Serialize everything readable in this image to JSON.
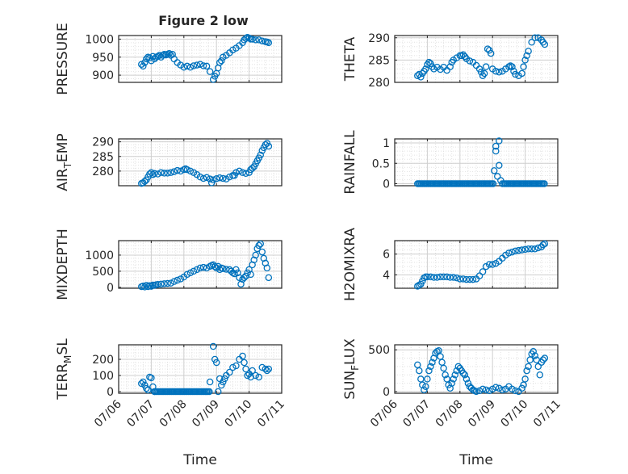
{
  "figure": {
    "title": "Figure 2 low"
  },
  "colors": {
    "marker": "#0072BD",
    "axis": "#262626",
    "grid": "#d8d8d8",
    "background": "#ffffff"
  },
  "chart_data": [
    {
      "type": "scatter",
      "title": "Figure 2 low",
      "xlabel": "",
      "ylabel": "PRESSURE",
      "xlim": [
        "07/06",
        "07/11"
      ],
      "ylim": [
        880,
        1010
      ],
      "yticks": [
        900,
        950,
        1000
      ],
      "xtick_labels": [
        "07/06",
        "07/07",
        "07/08",
        "07/09",
        "07/10",
        "07/11"
      ],
      "grid": true,
      "series": [
        {
          "x_days": [
            0.7,
            0.75,
            0.8,
            0.85,
            0.9,
            0.95,
            1.0,
            1.05,
            1.1,
            1.15,
            1.2,
            1.25,
            1.3,
            1.35,
            1.4,
            1.45,
            1.5,
            1.55,
            1.6,
            1.65,
            1.7,
            1.8,
            1.9,
            2.0,
            2.1,
            2.2,
            2.3,
            2.4,
            2.5,
            2.6,
            2.7,
            2.8,
            2.9,
            2.95,
            3.0,
            3.05,
            3.1,
            3.15,
            3.2,
            3.3,
            3.4,
            3.5,
            3.6,
            3.7,
            3.8,
            3.85,
            3.9,
            3.95,
            4.0,
            4.05,
            4.1,
            4.2,
            4.3,
            4.4,
            4.5,
            4.55,
            4.6
          ],
          "y": [
            930,
            925,
            935,
            945,
            950,
            948,
            940,
            952,
            945,
            950,
            952,
            955,
            950,
            955,
            958,
            956,
            958,
            960,
            955,
            958,
            945,
            935,
            928,
            922,
            925,
            922,
            926,
            928,
            930,
            926,
            925,
            910,
            888,
            897,
            905,
            920,
            935,
            940,
            950,
            955,
            962,
            970,
            975,
            982,
            990,
            998,
            1002,
            1005,
            1003,
            1000,
            1000,
            998,
            998,
            995,
            993,
            992,
            990
          ]
        }
      ]
    },
    {
      "type": "scatter",
      "xlabel": "",
      "ylabel": "THETA",
      "xlim": [
        "07/06",
        "07/11"
      ],
      "ylim": [
        280,
        290.5
      ],
      "yticks": [
        280,
        285,
        290
      ],
      "xtick_labels": [
        "07/06",
        "07/07",
        "07/08",
        "07/09",
        "07/10",
        "07/11"
      ],
      "grid": true,
      "series": [
        {
          "x_days": [
            0.7,
            0.75,
            0.8,
            0.85,
            0.9,
            0.95,
            1.0,
            1.05,
            1.1,
            1.15,
            1.2,
            1.3,
            1.4,
            1.5,
            1.6,
            1.7,
            1.75,
            1.8,
            1.9,
            2.0,
            2.05,
            2.1,
            2.15,
            2.2,
            2.3,
            2.4,
            2.5,
            2.6,
            2.65,
            2.7,
            2.75,
            2.8,
            2.85,
            2.9,
            2.95,
            3.0,
            3.1,
            3.2,
            3.3,
            3.4,
            3.5,
            3.55,
            3.6,
            3.65,
            3.7,
            3.8,
            3.9,
            3.95,
            4.0,
            4.05,
            4.1,
            4.2,
            4.3,
            4.4,
            4.5,
            4.55,
            4.6
          ],
          "y": [
            281.5,
            281.8,
            281.2,
            282,
            282.5,
            283,
            284,
            284.5,
            284.2,
            283.5,
            283,
            283.4,
            282.9,
            283.4,
            282.7,
            283.5,
            284.5,
            285,
            285.5,
            286,
            286,
            286.2,
            285.8,
            285.3,
            284.8,
            284.5,
            283.8,
            283,
            282.3,
            281.5,
            282,
            283.5,
            287.5,
            287.2,
            286.5,
            283,
            282.5,
            282.3,
            282.5,
            283,
            283.5,
            283.7,
            283.5,
            282.5,
            281.8,
            281.5,
            282,
            283.5,
            285,
            286,
            287,
            289,
            290,
            290,
            289.5,
            289,
            288.5
          ]
        }
      ]
    },
    {
      "type": "scatter",
      "xlabel": "",
      "ylabel": "AIR_TEMP",
      "xlim": [
        "07/06",
        "07/11"
      ],
      "ylim": [
        275,
        291
      ],
      "yticks": [
        280,
        285,
        290
      ],
      "xtick_labels": [
        "07/06",
        "07/07",
        "07/08",
        "07/09",
        "07/10",
        "07/11"
      ],
      "grid": true,
      "series": [
        {
          "x_days": [
            0.7,
            0.75,
            0.8,
            0.85,
            0.9,
            0.95,
            1.0,
            1.05,
            1.1,
            1.2,
            1.3,
            1.4,
            1.5,
            1.6,
            1.7,
            1.8,
            1.9,
            2.0,
            2.05,
            2.1,
            2.2,
            2.3,
            2.4,
            2.5,
            2.6,
            2.7,
            2.8,
            2.85,
            2.9,
            3.0,
            3.1,
            3.2,
            3.3,
            3.4,
            3.5,
            3.55,
            3.6,
            3.7,
            3.8,
            3.9,
            4.0,
            4.05,
            4.1,
            4.15,
            4.2,
            4.25,
            4.3,
            4.35,
            4.4,
            4.45,
            4.5,
            4.55,
            4.6
          ],
          "y": [
            275.8,
            276,
            276.5,
            277,
            278,
            279,
            279.5,
            278.8,
            279.2,
            279,
            279.5,
            279.3,
            279.3,
            279.5,
            279.8,
            280.2,
            280,
            280.5,
            280.8,
            280.5,
            280,
            279.5,
            278.8,
            278,
            277.5,
            277.8,
            277.3,
            276,
            277,
            277.4,
            277.7,
            277.5,
            277.3,
            278,
            278.5,
            278.5,
            279.5,
            280,
            279.5,
            279.2,
            279.5,
            280.5,
            281,
            281.5,
            282.5,
            283.5,
            284.5,
            285.5,
            287,
            288,
            289,
            289.5,
            288.5
          ]
        }
      ]
    },
    {
      "type": "scatter",
      "xlabel": "",
      "ylabel": "RAINFALL",
      "xlim": [
        "07/06",
        "07/11"
      ],
      "ylim": [
        -0.05,
        1.1
      ],
      "yticks": [
        0,
        0.5,
        1
      ],
      "ytick_labels": [
        "0",
        "0.5",
        "1"
      ],
      "xtick_labels": [
        "07/06",
        "07/07",
        "07/08",
        "07/09",
        "07/10",
        "07/11"
      ],
      "grid": true,
      "series": [
        {
          "note_zero_run": [
            0.7,
            3.05,
            3.35,
            4.6
          ],
          "x_days": [
            3.05,
            3.1,
            3.1,
            3.15,
            3.2,
            3.2,
            3.25,
            3.3
          ],
          "y": [
            0.32,
            0.92,
            0.8,
            0.18,
            0.45,
            1.05,
            0.08,
            0.0
          ]
        }
      ]
    },
    {
      "type": "scatter",
      "xlabel": "",
      "ylabel": "MIXDEPTH",
      "xlim": [
        "07/06",
        "07/11"
      ],
      "ylim": [
        -30,
        1450
      ],
      "yticks": [
        0,
        500,
        1000
      ],
      "xtick_labels": [
        "07/06",
        "07/07",
        "07/08",
        "07/09",
        "07/10",
        "07/11"
      ],
      "grid": true,
      "series": [
        {
          "x_days": [
            0.7,
            0.75,
            0.8,
            0.85,
            0.9,
            0.95,
            1.0,
            1.05,
            1.1,
            1.15,
            1.2,
            1.3,
            1.4,
            1.5,
            1.6,
            1.7,
            1.8,
            1.9,
            2.0,
            2.1,
            2.2,
            2.3,
            2.4,
            2.5,
            2.6,
            2.7,
            2.8,
            2.85,
            2.9,
            2.95,
            3.0,
            3.05,
            3.1,
            3.15,
            3.2,
            3.3,
            3.4,
            3.45,
            3.5,
            3.55,
            3.6,
            3.65,
            3.7,
            3.75,
            3.8,
            3.85,
            3.9,
            3.95,
            4.0,
            4.05,
            4.1,
            4.15,
            4.2,
            4.25,
            4.3,
            4.35,
            4.4,
            4.45,
            4.5,
            4.55,
            4.6
          ],
          "y": [
            20,
            40,
            10,
            60,
            20,
            50,
            30,
            70,
            60,
            80,
            90,
            100,
            110,
            120,
            130,
            180,
            220,
            260,
            320,
            400,
            450,
            500,
            550,
            600,
            620,
            600,
            650,
            680,
            700,
            640,
            600,
            650,
            550,
            600,
            580,
            560,
            550,
            500,
            450,
            420,
            550,
            450,
            300,
            100,
            250,
            300,
            350,
            450,
            550,
            400,
            700,
            850,
            1000,
            1200,
            1300,
            1350,
            1100,
            900,
            750,
            600,
            300
          ]
        }
      ]
    },
    {
      "type": "scatter",
      "xlabel": "",
      "ylabel": "H2OMIXRA",
      "xlim": [
        "07/06",
        "07/11"
      ],
      "ylim": [
        2.7,
        7.3
      ],
      "yticks": [
        4,
        6
      ],
      "xtick_labels": [
        "07/06",
        "07/07",
        "07/08",
        "07/09",
        "07/10",
        "07/11"
      ],
      "grid": true,
      "series": [
        {
          "x_days": [
            0.7,
            0.75,
            0.8,
            0.85,
            0.9,
            0.95,
            1.0,
            1.1,
            1.2,
            1.3,
            1.4,
            1.5,
            1.6,
            1.7,
            1.8,
            1.9,
            2.0,
            2.1,
            2.2,
            2.3,
            2.4,
            2.5,
            2.6,
            2.7,
            2.8,
            2.9,
            3.0,
            3.1,
            3.2,
            3.3,
            3.4,
            3.5,
            3.6,
            3.7,
            3.8,
            3.9,
            4.0,
            4.1,
            4.2,
            4.3,
            4.4,
            4.5,
            4.55,
            4.6
          ],
          "y": [
            2.9,
            3.0,
            3.1,
            3.4,
            3.7,
            3.8,
            3.8,
            3.8,
            3.75,
            3.75,
            3.8,
            3.8,
            3.8,
            3.75,
            3.75,
            3.7,
            3.6,
            3.6,
            3.55,
            3.55,
            3.55,
            3.6,
            3.9,
            4.3,
            4.8,
            5.0,
            5.0,
            5.1,
            5.3,
            5.6,
            5.9,
            6.1,
            6.2,
            6.3,
            6.35,
            6.4,
            6.45,
            6.5,
            6.5,
            6.5,
            6.6,
            6.7,
            6.9,
            7.0
          ]
        }
      ]
    },
    {
      "type": "scatter",
      "xlabel": "Time",
      "ylabel": "TERR_MSL",
      "xlim": [
        "07/06",
        "07/11"
      ],
      "ylim": [
        -10,
        290
      ],
      "yticks": [
        0,
        100,
        200
      ],
      "xtick_labels": [
        "07/06",
        "07/07",
        "07/08",
        "07/09",
        "07/10",
        "07/11"
      ],
      "grid": true,
      "series": [
        {
          "note_zero_run": [
            1.1,
            2.8
          ],
          "x_days": [
            0.7,
            0.75,
            0.8,
            0.85,
            0.9,
            0.95,
            1.0,
            1.05,
            1.1,
            2.8,
            2.9,
            2.95,
            3.0,
            3.05,
            3.1,
            3.15,
            3.2,
            3.25,
            3.3,
            3.4,
            3.5,
            3.6,
            3.7,
            3.8,
            3.85,
            3.9,
            3.95,
            4.0,
            4.05,
            4.1,
            4.2,
            4.3,
            4.4,
            4.5,
            4.55,
            4.6
          ],
          "y": [
            50,
            60,
            40,
            20,
            10,
            90,
            85,
            30,
            0,
            60,
            280,
            200,
            180,
            0,
            80,
            40,
            60,
            80,
            100,
            120,
            150,
            160,
            200,
            220,
            180,
            140,
            100,
            110,
            90,
            130,
            100,
            90,
            150,
            140,
            130,
            140
          ]
        }
      ]
    },
    {
      "type": "scatter",
      "xlabel": "Time",
      "ylabel": "SUN_FLUX",
      "xlim": [
        "07/06",
        "07/11"
      ],
      "ylim": [
        -20,
        560
      ],
      "yticks": [
        0,
        500
      ],
      "xtick_labels": [
        "07/06",
        "07/07",
        "07/08",
        "07/09",
        "07/10",
        "07/11"
      ],
      "grid": true,
      "series": [
        {
          "x_days": [
            0.7,
            0.75,
            0.8,
            0.85,
            0.9,
            0.95,
            1.0,
            1.05,
            1.1,
            1.15,
            1.2,
            1.25,
            1.3,
            1.35,
            1.4,
            1.45,
            1.5,
            1.55,
            1.6,
            1.65,
            1.7,
            1.75,
            1.8,
            1.85,
            1.9,
            1.95,
            2.0,
            2.05,
            2.1,
            2.15,
            2.2,
            2.25,
            2.3,
            2.35,
            2.4,
            2.45,
            2.5,
            2.6,
            2.7,
            2.8,
            2.9,
            3.0,
            3.1,
            3.2,
            3.3,
            3.4,
            3.5,
            3.6,
            3.7,
            3.8,
            3.9,
            3.95,
            4.0,
            4.05,
            4.1,
            4.15,
            4.2,
            4.25,
            4.3,
            4.35,
            4.4,
            4.45,
            4.5,
            4.55,
            4.6
          ],
          "y": [
            320,
            250,
            150,
            80,
            20,
            60,
            150,
            250,
            300,
            350,
            400,
            460,
            480,
            490,
            420,
            350,
            280,
            200,
            150,
            80,
            40,
            100,
            150,
            200,
            250,
            300,
            280,
            250,
            220,
            200,
            150,
            100,
            60,
            40,
            20,
            10,
            0,
            10,
            30,
            20,
            10,
            30,
            50,
            40,
            20,
            30,
            60,
            30,
            10,
            0,
            40,
            80,
            150,
            250,
            300,
            380,
            450,
            480,
            430,
            380,
            300,
            200,
            350,
            380,
            400
          ]
        }
      ]
    }
  ]
}
